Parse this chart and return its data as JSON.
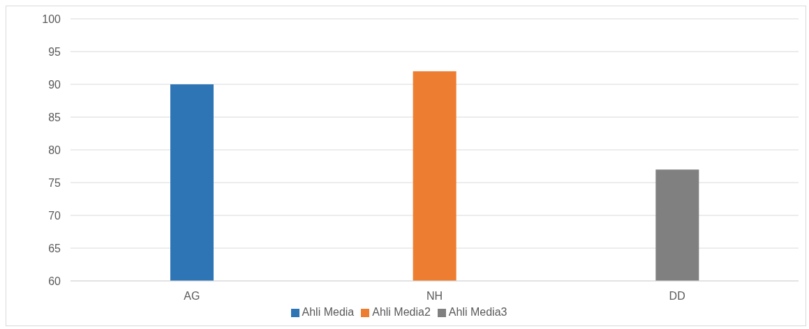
{
  "chart_data": {
    "type": "bar",
    "categories": [
      "AG",
      "NH",
      "DD"
    ],
    "stacked": true,
    "series": [
      {
        "name": "Ahli Media",
        "color": "#2e75b6",
        "values": [
          90,
          null,
          null
        ]
      },
      {
        "name": "Ahli Media2",
        "color": "#ed7d31",
        "values": [
          null,
          92,
          null
        ]
      },
      {
        "name": "Ahli Media3",
        "color": "#808080",
        "values": [
          null,
          null,
          77
        ]
      }
    ],
    "ylim": [
      60,
      100
    ],
    "yticks": [
      60,
      65,
      70,
      75,
      80,
      85,
      90,
      95,
      100
    ],
    "grid": "y",
    "legend": "bottom"
  }
}
